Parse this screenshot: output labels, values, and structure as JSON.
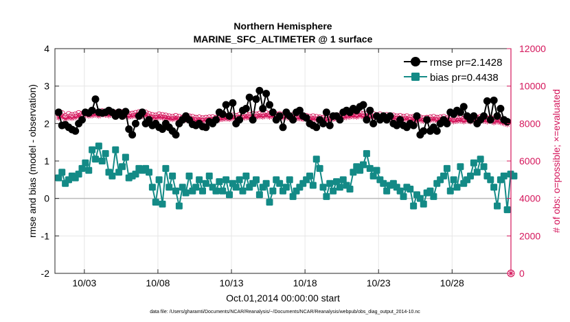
{
  "chart_data": {
    "type": "line",
    "title": "Northern Hemisphere",
    "subtitle": "MARINE_SFC_ALTIMETER @ 1 surface",
    "xlabel": "Oct.01,2014 00:00:00 start",
    "ylabel": "rmse and bias (model - observation)",
    "y2label": "# of obs: o=possible; ×=evaluated",
    "footnote": "data file: /Users/gharamti/Documents/NCAR/Reanalysis/~/Documents/NCAR/Reanalysis/webpub/obs_diag_output_2014-10.nc",
    "x_tick_labels": [
      "10/03",
      "10/08",
      "10/13",
      "10/18",
      "10/23",
      "10/28"
    ],
    "x_tick_days": [
      3,
      8,
      13,
      18,
      23,
      28
    ],
    "xlim_days": [
      1,
      32
    ],
    "ylim": [
      -2,
      4
    ],
    "yticks": [
      -2,
      -1,
      0,
      1,
      2,
      3,
      4
    ],
    "y2lim": [
      0,
      12000
    ],
    "y2ticks": [
      0,
      2000,
      4000,
      6000,
      8000,
      10000,
      12000
    ],
    "legend_position": "top-right",
    "grid": true,
    "colors": {
      "rmse": "#000000",
      "bias": "#138a86",
      "obs": "#d4145a",
      "zero": "#bbbbbb"
    },
    "series": [
      {
        "name": "rmse pr=2.1428",
        "marker": "circle",
        "axis": "left",
        "values": [
          2.3,
          1.95,
          1.97,
          1.9,
          1.84,
          1.8,
          2.0,
          2.1,
          2.3,
          2.28,
          2.35,
          2.65,
          2.3,
          2.28,
          2.3,
          2.35,
          2.3,
          2.2,
          2.3,
          2.2,
          2.32,
          1.85,
          1.7,
          2.0,
          2.2,
          2.3,
          2.0,
          2.1,
          1.95,
          2.0,
          1.9,
          1.85,
          2.0,
          1.9,
          1.8,
          1.7,
          2.0,
          2.1,
          2.2,
          2.1,
          1.98,
          1.95,
          2.0,
          1.92,
          1.9,
          2.05,
          2.0,
          2.1,
          2.3,
          2.25,
          2.5,
          2.2,
          2.55,
          2.0,
          2.1,
          2.35,
          2.4,
          2.7,
          2.1,
          2.65,
          2.88,
          2.4,
          2.8,
          2.5,
          2.3,
          2.1,
          2.2,
          1.9,
          2.3,
          2.2,
          2.1,
          2.3,
          2.35,
          2.2,
          2.15,
          2.0,
          1.95,
          1.9,
          2.1,
          2.0,
          2.3,
          1.95,
          2.2,
          2.2,
          2.1,
          2.3,
          2.35,
          2.3,
          2.4,
          2.35,
          2.45,
          2.5,
          2.1,
          2.35,
          2.0,
          2.2,
          2.1,
          2.2,
          2.1,
          2.2,
          2.0,
          1.95,
          2.1,
          1.95,
          1.9,
          2.0,
          1.95,
          2.2,
          1.7,
          1.8,
          2.1,
          1.8,
          1.9,
          1.8,
          2.0,
          2.1,
          2.0,
          2.3,
          2.25,
          2.35,
          2.3,
          2.45,
          2.2,
          2.1,
          2.2,
          2.0,
          2.1,
          2.2,
          2.6,
          2.1,
          2.62,
          2.2,
          2.4,
          2.1,
          2.05
        ]
      },
      {
        "name": "bias pr=0.4438",
        "marker": "square",
        "axis": "left",
        "values": [
          0.55,
          0.7,
          0.4,
          0.5,
          0.6,
          0.55,
          0.65,
          0.8,
          0.95,
          0.75,
          1.3,
          1.05,
          1.4,
          1.0,
          1.2,
          0.7,
          0.6,
          1.3,
          0.7,
          0.85,
          1.1,
          0.55,
          0.6,
          0.65,
          0.8,
          0.75,
          0.8,
          0.7,
          0.3,
          -0.1,
          0.5,
          -0.15,
          0.8,
          0.3,
          0.6,
          0.2,
          -0.2,
          0.3,
          0.15,
          0.6,
          0.2,
          0.3,
          0.5,
          0.2,
          0.4,
          0.6,
          0.3,
          0.2,
          0.45,
          0.2,
          0.5,
          0.1,
          0.4,
          0.3,
          0.5,
          0.2,
          0.6,
          0.3,
          0.4,
          0.5,
          0.1,
          0.3,
          0.4,
          -0.1,
          0.2,
          0.5,
          0.4,
          0.2,
          0.3,
          0.5,
          0.05,
          0.2,
          0.3,
          0.4,
          0.5,
          0.6,
          0.35,
          1.05,
          0.8,
          0.3,
          0.05,
          0.4,
          0.2,
          0.45,
          0.3,
          0.5,
          0.35,
          0.25,
          0.7,
          0.85,
          0.75,
          0.9,
          1.2,
          0.8,
          0.6,
          0.75,
          0.5,
          0.4,
          0.2,
          0.35,
          0.4,
          0.3,
          0.2,
          0.05,
          0.3,
          0.25,
          -0.2,
          0.1,
          0.0,
          -0.15,
          0.15,
          0.2,
          0.05,
          0.4,
          0.5,
          0.6,
          0.8,
          0.2,
          0.5,
          0.3,
          0.85,
          0.4,
          0.5,
          0.6,
          0.95,
          0.7,
          1.05,
          0.85,
          0.6,
          0.5,
          0.3,
          -0.2,
          0.5,
          0.6,
          -0.3,
          0.65,
          0.6
        ]
      },
      {
        "name": "possible",
        "marker": "circle-open",
        "axis": "right",
        "values": [
          8500,
          8550,
          8400,
          8500,
          8450,
          8480,
          8550,
          8500,
          8600,
          8520,
          8580,
          8600,
          8550,
          8650,
          8620,
          8600,
          8620,
          8580,
          8640,
          8600,
          8550,
          8500,
          8520,
          8560,
          8600,
          8520,
          8580,
          8500,
          8450,
          8420,
          8480,
          8450,
          8420,
          8380,
          8350,
          8400,
          8350,
          8300,
          8350,
          8380,
          8350,
          8300,
          8320,
          8280,
          8300,
          8320,
          8330,
          8300,
          8350,
          8380,
          8400,
          8380,
          8420,
          8400,
          8450,
          8420,
          8480,
          8450,
          8500,
          8480,
          8520,
          8500,
          8550,
          8500,
          8520,
          8480,
          8500,
          8450,
          8480,
          8420,
          8450,
          8400,
          8420,
          8380,
          8400,
          8350,
          8380,
          8350,
          8320,
          8300,
          8320,
          8350,
          8380,
          8400,
          8420,
          8450,
          8480,
          8500,
          8520,
          8500,
          8550,
          8500,
          8520,
          8480,
          8500,
          8450,
          8480,
          8420,
          8450,
          8400,
          8420,
          8380,
          8400,
          8350,
          8380,
          8320,
          8350,
          8300,
          8320,
          8280,
          8300,
          8320,
          8350,
          8300,
          8320,
          8350,
          8280,
          8300,
          8250,
          8280,
          8300,
          8250,
          8300,
          8250,
          8280,
          8300,
          8350,
          8280,
          8250,
          8300,
          8200,
          8250,
          8200,
          8150,
          8100
        ]
      },
      {
        "name": "evaluated",
        "marker": "star",
        "axis": "right",
        "values": [
          8300,
          8350,
          8250,
          8300,
          8280,
          8320,
          8380,
          8350,
          8450,
          8400,
          8420,
          8450,
          8400,
          8480,
          8450,
          8420,
          8450,
          8400,
          8480,
          8430,
          8400,
          8350,
          8380,
          8400,
          8450,
          8380,
          8420,
          8350,
          8300,
          8280,
          8320,
          8300,
          8280,
          8250,
          8220,
          8250,
          8200,
          8150,
          8200,
          8230,
          8200,
          8150,
          8180,
          8130,
          8150,
          8180,
          8190,
          8150,
          8200,
          8230,
          8250,
          8230,
          8280,
          8250,
          8300,
          8280,
          8320,
          8300,
          8350,
          8330,
          8370,
          8350,
          8400,
          8350,
          8370,
          8330,
          8350,
          8300,
          8330,
          8270,
          8300,
          8250,
          8270,
          8230,
          8250,
          8200,
          8230,
          8200,
          8170,
          8150,
          8170,
          8200,
          8230,
          8250,
          8270,
          8300,
          8330,
          8350,
          8370,
          8350,
          8400,
          8350,
          8370,
          8330,
          8350,
          8300,
          8330,
          8270,
          8300,
          8250,
          8270,
          8230,
          8250,
          8200,
          8230,
          8170,
          8200,
          8150,
          8170,
          8130,
          8150,
          8170,
          8200,
          8150,
          8170,
          8200,
          8130,
          8150,
          8100,
          8130,
          8150,
          8100,
          8150,
          8100,
          8130,
          8150,
          8200,
          8130,
          8100,
          8150,
          8050,
          8100,
          8050,
          8000,
          7950
        ]
      }
    ]
  }
}
